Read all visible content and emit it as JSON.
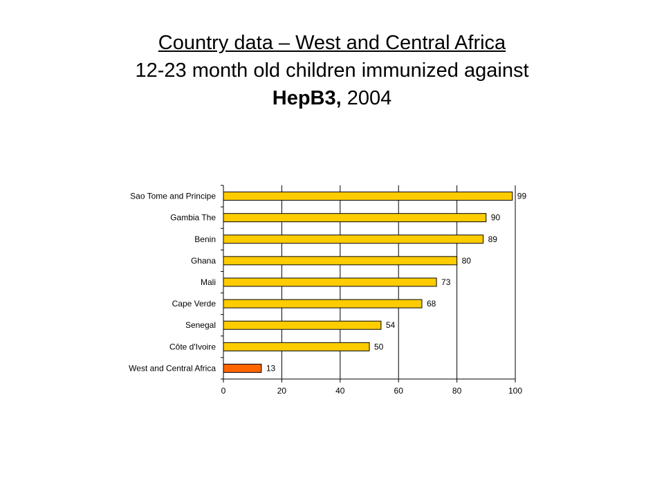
{
  "header": {
    "line1": "Country data – West and Central Africa",
    "line2": "12-23 month old children immunized against",
    "line3_bold": "HepB3,",
    "line3_rest": " 2004"
  },
  "chart_data": {
    "type": "bar",
    "orientation": "horizontal",
    "categories": [
      "Sao Tome and Principe",
      "Gambia The",
      "Benin",
      "Ghana",
      "Mali",
      "Cape Verde",
      "Senegal",
      "Côte d'Ivoire",
      "West and Central Africa"
    ],
    "values": [
      99,
      90,
      89,
      80,
      73,
      68,
      54,
      50,
      13
    ],
    "value_labels": [
      "99",
      "90",
      "89",
      "80",
      "73",
      "68",
      "54",
      "50",
      "13"
    ],
    "colors": [
      "#FFCC00",
      "#FFCC00",
      "#FFCC00",
      "#FFCC00",
      "#FFCC00",
      "#FFCC00",
      "#FFCC00",
      "#FFCC00",
      "#FF6600"
    ],
    "xlim": [
      0,
      100
    ],
    "xticks": [
      0,
      20,
      40,
      60,
      80,
      100
    ],
    "xtick_labels": [
      "0",
      "20",
      "40",
      "60",
      "80",
      "100"
    ],
    "grid": "vertical",
    "legend": "none"
  }
}
